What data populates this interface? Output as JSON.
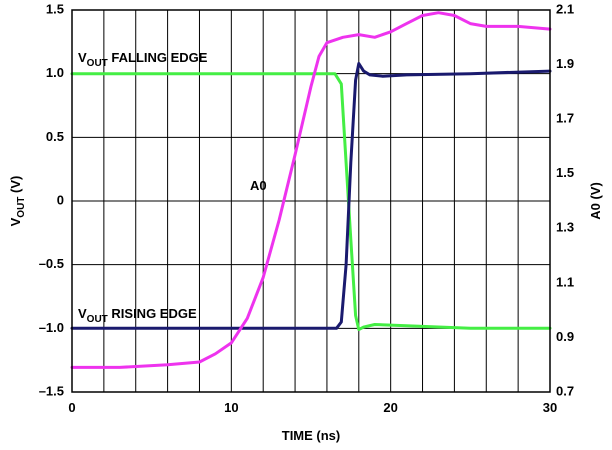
{
  "chart_data": {
    "type": "line",
    "xlabel": "TIME (ns)",
    "ylabel_left": {
      "main": "V",
      "sub": "OUT",
      "suffix": " (V)"
    },
    "ylabel_right": "A0 (V)",
    "xlim": [
      0,
      30
    ],
    "ylim_left": [
      -1.5,
      1.5
    ],
    "ylim_right": [
      0.7,
      2.1
    ],
    "x_ticks": [
      "0",
      "10",
      "20",
      "30"
    ],
    "x_tick_values": [
      0,
      10,
      20,
      30
    ],
    "y_left_ticks": [
      "1.5",
      "1.0",
      "0.5",
      "0",
      "–0.5",
      "–1.0",
      "–1.5"
    ],
    "y_left_tick_values": [
      1.5,
      1.0,
      0.5,
      0,
      -0.5,
      -1.0,
      -1.5
    ],
    "y_right_ticks": [
      "2.1",
      "1.9",
      "1.7",
      "1.5",
      "1.3",
      "1.1",
      "0.9",
      "0.7"
    ],
    "y_right_tick_values": [
      2.1,
      1.9,
      1.7,
      1.5,
      1.3,
      1.1,
      0.9,
      0.7
    ],
    "grid": true,
    "annotations": {
      "falling": {
        "main": "V",
        "sub": "OUT",
        "text": " FALLING EDGE"
      },
      "rising": {
        "main": "V",
        "sub": "OUT",
        "text": " RISING EDGE"
      },
      "a0": "A0"
    },
    "series": [
      {
        "axis": "left",
        "color": "#44ee44",
        "x": [
          0,
          5,
          10,
          15,
          16.5,
          16.9,
          17.2,
          17.5,
          17.8,
          18.0,
          18.3,
          19,
          21,
          25,
          30
        ],
        "y": [
          1.0,
          1.0,
          1.0,
          1.0,
          1.0,
          0.92,
          0.3,
          -0.3,
          -0.9,
          -1.01,
          -0.99,
          -0.97,
          -0.98,
          -1.0,
          -1.0
        ]
      },
      {
        "axis": "left",
        "color": "#1a1a6e",
        "x": [
          0,
          5,
          10,
          15,
          16.6,
          16.9,
          17.2,
          17.5,
          17.8,
          18.0,
          18.3,
          18.7,
          19.5,
          21,
          25,
          30
        ],
        "y": [
          -1.0,
          -1.0,
          -1.0,
          -1.0,
          -1.0,
          -0.95,
          -0.5,
          0.3,
          0.95,
          1.08,
          1.02,
          0.99,
          0.98,
          0.99,
          1.0,
          1.02
        ]
      },
      {
        "axis": "right",
        "color": "#ee33ee",
        "x": [
          0,
          3,
          6,
          8,
          9,
          10,
          11,
          12,
          13,
          14,
          15,
          15.5,
          16,
          17,
          18,
          19,
          20,
          21,
          22,
          23,
          24,
          25,
          26,
          28,
          30
        ],
        "y": [
          0.79,
          0.79,
          0.8,
          0.81,
          0.84,
          0.88,
          0.97,
          1.12,
          1.33,
          1.57,
          1.82,
          1.93,
          1.98,
          2.0,
          2.01,
          2.0,
          2.02,
          2.05,
          2.08,
          2.09,
          2.08,
          2.05,
          2.04,
          2.04,
          2.03
        ]
      }
    ]
  }
}
